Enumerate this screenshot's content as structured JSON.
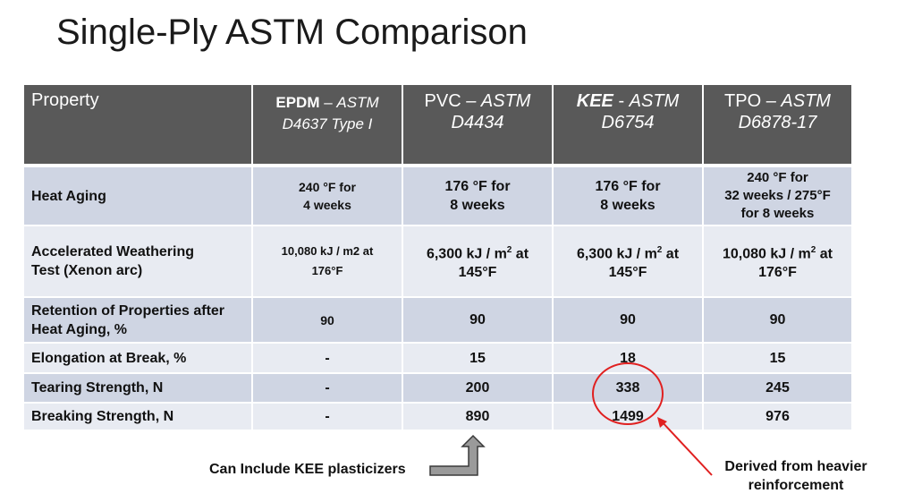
{
  "title": "Single-Ply ASTM Comparison",
  "header": {
    "property": "Property",
    "epdm": {
      "name": "EPDM",
      "sep": " – ",
      "std1": "ASTM",
      "std2": "D4637 Type I"
    },
    "pvc": {
      "name": "PVC",
      "sep": " – ",
      "std1": "ASTM",
      "std2": "D4434"
    },
    "kee": {
      "name": "KEE",
      "sep": " - ",
      "std1": "ASTM",
      "std2": "D6754"
    },
    "tpo": {
      "name": "TPO",
      "sep": " – ",
      "std1": "ASTM",
      "std2": "D6878-17"
    }
  },
  "rows": [
    {
      "prop_line1": "Heat Aging",
      "epdm": [
        "240 °F for",
        "4 weeks"
      ],
      "pvc": [
        "176 °F for",
        "8 weeks"
      ],
      "kee": [
        "176 °F for",
        "8 weeks"
      ],
      "tpo": [
        "240 °F for",
        "32 weeks / 275°F",
        "for 8 weeks"
      ]
    },
    {
      "prop_line1": "Accelerated Weathering",
      "prop_line2": "Test (Xenon arc)",
      "epdm": [
        "10,080 kJ / m2 at",
        "176°F"
      ],
      "pvc": [
        "6,300 kJ / m",
        "2",
        " at",
        "145°F"
      ],
      "kee": [
        "6,300 kJ / m",
        "2",
        " at",
        "145°F"
      ],
      "tpo": [
        "10,080 kJ / m",
        "2",
        " at",
        "176°F"
      ]
    },
    {
      "prop_line1": "Retention of Properties after",
      "prop_line2": "Heat Aging, %",
      "epdm": "90",
      "pvc": "90",
      "kee": "90",
      "tpo": "90"
    },
    {
      "prop_line1": "Elongation at Break, %",
      "epdm": "-",
      "pvc": "15",
      "kee": "18",
      "tpo": "15"
    },
    {
      "prop_line1": "Tearing Strength, N",
      "epdm": "-",
      "pvc": "200",
      "kee": "338",
      "tpo": "245"
    },
    {
      "prop_line1": "Breaking Strength, N",
      "epdm": "-",
      "pvc": "890",
      "kee": "1499",
      "tpo": "976"
    }
  ],
  "notes": {
    "left": "Can Include KEE plasticizers",
    "right_line1": "Derived from heavier",
    "right_line2": "reinforcement"
  },
  "colors": {
    "header_bg": "#595959",
    "row_dark": "#cfd5e3",
    "row_light": "#e8ebf2",
    "annotation_red": "#e02020"
  }
}
